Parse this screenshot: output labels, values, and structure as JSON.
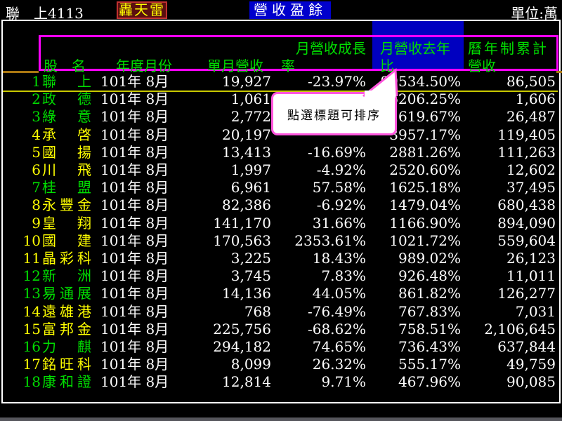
{
  "topbar": {
    "stock_name": "聯　上",
    "stock_code": "4113",
    "app_badge": "轟天雷",
    "report_title": "營收盈餘",
    "unit_label": "單位:萬"
  },
  "header": {
    "name": "股　名",
    "year_month": "年度月份",
    "revenue": "單月營收",
    "growth_line1": "月營收成長",
    "growth_line2": "率",
    "yoy_line1": "月營收去年",
    "yoy_line2": "比",
    "cum_line1": "曆年制累計",
    "cum_line2": "營收"
  },
  "tooltip": {
    "text": "點選標題可排序"
  },
  "colors": {
    "green": "#00dd00",
    "yellow": "#ffff00",
    "white": "#ffffff",
    "magenta": "#ff00ff",
    "tooltip_border": "#ff55dd",
    "highlight_blue": "#0000c0",
    "title_blue": "#0000cc",
    "orange": "#aa7711"
  },
  "rows": [
    {
      "no": "1",
      "name": "聯上",
      "color": "green",
      "year_month": "101年 8月",
      "revenue": "19,927",
      "growth": "-23.97%",
      "yoy": "99534.50%",
      "cum": "86,505"
    },
    {
      "no": "2",
      "name": "政德",
      "color": "green",
      "year_month": "101年 8月",
      "revenue": "1,061",
      "growth": "",
      "yoy": "6206.25%",
      "cum": "1,606"
    },
    {
      "no": "3",
      "name": "綠意",
      "color": "green",
      "year_month": "101年 8月",
      "revenue": "2,772",
      "growth": "",
      "yoy": "2619.67%",
      "cum": "26,487"
    },
    {
      "no": "4",
      "name": "承啓",
      "color": "yellow",
      "year_month": "101年 8月",
      "revenue": "20,197",
      "growth": "",
      "yoy": "3957.17%",
      "cum": "119,405"
    },
    {
      "no": "5",
      "name": "國揚",
      "color": "yellow",
      "year_month": "101年 8月",
      "revenue": "13,413",
      "growth": "-16.69%",
      "yoy": "2881.26%",
      "cum": "111,263"
    },
    {
      "no": "6",
      "name": "川飛",
      "color": "yellow",
      "year_month": "101年 8月",
      "revenue": "1,997",
      "growth": "-4.92%",
      "yoy": "2520.60%",
      "cum": "12,602"
    },
    {
      "no": "7",
      "name": "桂盟",
      "color": "green",
      "year_month": "101年 8月",
      "revenue": "6,961",
      "growth": "57.58%",
      "yoy": "1625.18%",
      "cum": "37,495"
    },
    {
      "no": "8",
      "name": "永豐金",
      "color": "yellow",
      "year_month": "101年 8月",
      "revenue": "82,386",
      "growth": "-6.92%",
      "yoy": "1479.04%",
      "cum": "680,438"
    },
    {
      "no": "9",
      "name": "皇翔",
      "color": "yellow",
      "year_month": "101年 8月",
      "revenue": "141,170",
      "growth": "31.66%",
      "yoy": "1166.90%",
      "cum": "894,090"
    },
    {
      "no": "10",
      "name": "國建",
      "color": "yellow",
      "year_month": "101年 8月",
      "revenue": "170,563",
      "growth": "2353.61%",
      "yoy": "1021.72%",
      "cum": "559,604"
    },
    {
      "no": "11",
      "name": "晶彩科",
      "color": "yellow",
      "year_month": "101年 8月",
      "revenue": "3,225",
      "growth": "18.43%",
      "yoy": "989.02%",
      "cum": "26,123"
    },
    {
      "no": "12",
      "name": "新洲",
      "color": "green",
      "year_month": "101年 8月",
      "revenue": "3,745",
      "growth": "7.83%",
      "yoy": "926.48%",
      "cum": "11,011"
    },
    {
      "no": "13",
      "name": "易通展",
      "color": "green",
      "year_month": "101年 8月",
      "revenue": "14,136",
      "growth": "44.05%",
      "yoy": "861.82%",
      "cum": "126,277"
    },
    {
      "no": "14",
      "name": "遠雄港",
      "color": "yellow",
      "year_month": "101年 8月",
      "revenue": "768",
      "growth": "-76.49%",
      "yoy": "767.83%",
      "cum": "7,031"
    },
    {
      "no": "15",
      "name": "富邦金",
      "color": "yellow",
      "year_month": "101年 8月",
      "revenue": "225,756",
      "growth": "-68.62%",
      "yoy": "758.51%",
      "cum": "2,106,645"
    },
    {
      "no": "16",
      "name": "力麒",
      "color": "green",
      "year_month": "101年 8月",
      "revenue": "294,182",
      "growth": "74.65%",
      "yoy": "736.43%",
      "cum": "637,844"
    },
    {
      "no": "17",
      "name": "銘旺科",
      "color": "yellow",
      "year_month": "101年 8月",
      "revenue": "8,099",
      "growth": "26.32%",
      "yoy": "555.17%",
      "cum": "49,759"
    },
    {
      "no": "18",
      "name": "康和證",
      "color": "green",
      "year_month": "101年 8月",
      "revenue": "12,814",
      "growth": "9.71%",
      "yoy": "467.96%",
      "cum": "90,085"
    }
  ]
}
